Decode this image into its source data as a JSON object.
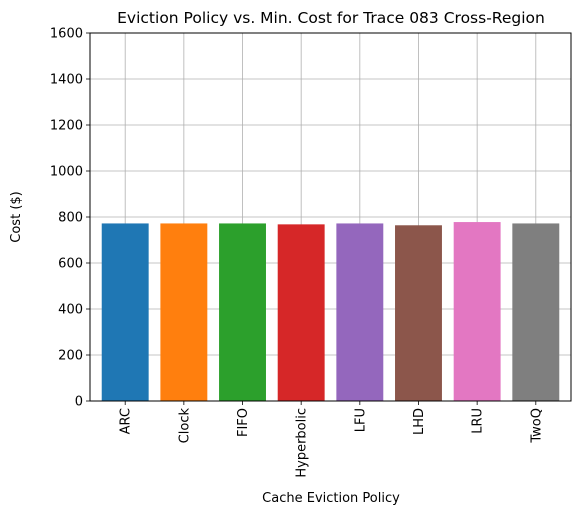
{
  "chart_data": {
    "type": "bar",
    "title": "Eviction Policy vs. Min. Cost for Trace 083 Cross-Region",
    "xlabel": "Cache Eviction Policy",
    "ylabel": "Cost ($)",
    "categories": [
      "ARC",
      "Clock",
      "FIFO",
      "Hyperbolic",
      "LFU",
      "LHD",
      "LRU",
      "TwoQ"
    ],
    "values": [
      772,
      772,
      772,
      768,
      772,
      764,
      778,
      772
    ],
    "colors": [
      "#1f77b4",
      "#ff7f0e",
      "#2ca02c",
      "#d62728",
      "#9467bd",
      "#8c564b",
      "#e377c2",
      "#7f7f7f"
    ],
    "ylim": [
      0,
      1600
    ],
    "yticks": [
      0,
      200,
      400,
      600,
      800,
      1000,
      1200,
      1400,
      1600
    ],
    "grid": true,
    "legend": "none"
  }
}
